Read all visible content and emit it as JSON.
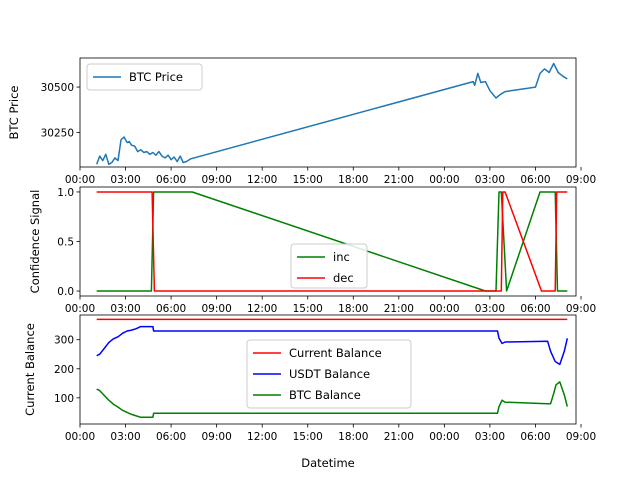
{
  "chart_data": [
    {
      "type": "line",
      "panel": "btc-price",
      "ylabel": "BTC Price",
      "xlabel": "",
      "xlim": [
        0.0,
        32.67
      ],
      "ylim": [
        30060,
        30660
      ],
      "yticks": [
        {
          "v": 30250,
          "label": "30250"
        },
        {
          "v": 30500,
          "label": "30500"
        }
      ],
      "xticks": [
        {
          "v": 0,
          "label": "00:00"
        },
        {
          "v": 3,
          "label": "03:00"
        },
        {
          "v": 6,
          "label": "06:00"
        },
        {
          "v": 9,
          "label": "09:00"
        },
        {
          "v": 12,
          "label": "12:00"
        },
        {
          "v": 15,
          "label": "15:00"
        },
        {
          "v": 18,
          "label": "18:00"
        },
        {
          "v": 21,
          "label": "21:00"
        },
        {
          "v": 24,
          "label": "00:00"
        },
        {
          "v": 27,
          "label": "03:00"
        },
        {
          "v": 30,
          "label": "06:00"
        },
        {
          "v": 33,
          "label": "09:00"
        }
      ],
      "legend": "upper-left",
      "series": [
        {
          "name": "BTC Price",
          "color": "#1f77b4",
          "x": [
            1.1,
            1.3,
            1.5,
            1.7,
            1.9,
            2.1,
            2.3,
            2.5,
            2.7,
            2.9,
            3.1,
            3.25,
            3.4,
            3.6,
            3.8,
            4.0,
            4.2,
            4.4,
            4.6,
            4.8,
            5.0,
            5.2,
            5.4,
            5.6,
            5.8,
            6.0,
            6.2,
            6.4,
            6.6,
            6.8,
            7.0,
            7.3,
            25.9,
            26.0,
            26.2,
            26.4,
            26.7,
            27.0,
            27.4,
            27.7,
            28.0,
            30.0,
            30.3,
            30.6,
            30.9,
            31.2,
            31.5,
            31.8,
            32.1
          ],
          "y": [
            30075,
            30120,
            30095,
            30130,
            30075,
            30085,
            30110,
            30095,
            30210,
            30225,
            30195,
            30200,
            30180,
            30175,
            30145,
            30155,
            30140,
            30145,
            30130,
            30140,
            30125,
            30145,
            30120,
            30110,
            30125,
            30100,
            30115,
            30090,
            30120,
            30085,
            30090,
            30105,
            30530,
            30510,
            30575,
            30525,
            30530,
            30480,
            30440,
            30460,
            30475,
            30500,
            30575,
            30600,
            30580,
            30630,
            30580,
            30560,
            30545
          ]
        }
      ]
    },
    {
      "type": "line",
      "panel": "confidence-signal",
      "ylabel": "Confidence Signal",
      "xlabel": "",
      "xlim": [
        0.0,
        32.67
      ],
      "ylim": [
        -0.05,
        1.05
      ],
      "yticks": [
        {
          "v": 0.0,
          "label": "0.0"
        },
        {
          "v": 0.5,
          "label": "0.5"
        },
        {
          "v": 1.0,
          "label": "1.0"
        }
      ],
      "xticks": [
        {
          "v": 0,
          "label": "00:00"
        },
        {
          "v": 3,
          "label": "03:00"
        },
        {
          "v": 6,
          "label": "06:00"
        },
        {
          "v": 9,
          "label": "09:00"
        },
        {
          "v": 12,
          "label": "12:00"
        },
        {
          "v": 15,
          "label": "15:00"
        },
        {
          "v": 18,
          "label": "18:00"
        },
        {
          "v": 21,
          "label": "21:00"
        },
        {
          "v": 24,
          "label": "00:00"
        },
        {
          "v": 27,
          "label": "03:00"
        },
        {
          "v": 30,
          "label": "06:00"
        },
        {
          "v": 33,
          "label": "09:00"
        }
      ],
      "legend": "lower-center",
      "series": [
        {
          "name": "inc",
          "color": "#008000",
          "x": [
            1.1,
            4.7,
            4.85,
            7.4,
            26.7,
            27.4,
            27.6,
            27.75,
            28.1,
            30.3,
            30.6,
            31.3,
            31.45,
            32.1
          ],
          "y": [
            0,
            0,
            1,
            1,
            0,
            0,
            1,
            1,
            0,
            1,
            1,
            1,
            0,
            0
          ]
        },
        {
          "name": "dec",
          "color": "#ff0000",
          "x": [
            1.1,
            4.75,
            4.9,
            27.75,
            27.85,
            28.0,
            30.4,
            31.3,
            31.4,
            32.1
          ],
          "y": [
            1,
            1,
            0,
            0,
            1,
            1,
            0,
            0,
            1,
            1
          ]
        }
      ]
    },
    {
      "type": "line",
      "panel": "balances",
      "ylabel": "Current Balance",
      "xlabel": "Datetime",
      "xlim": [
        0.0,
        32.67
      ],
      "ylim": [
        10,
        385
      ],
      "yticks": [
        {
          "v": 100,
          "label": "100"
        },
        {
          "v": 200,
          "label": "200"
        },
        {
          "v": 300,
          "label": "300"
        }
      ],
      "xticks": [
        {
          "v": 0,
          "label": "00:00"
        },
        {
          "v": 3,
          "label": "03:00"
        },
        {
          "v": 6,
          "label": "06:00"
        },
        {
          "v": 9,
          "label": "09:00"
        },
        {
          "v": 12,
          "label": "12:00"
        },
        {
          "v": 15,
          "label": "15:00"
        },
        {
          "v": 18,
          "label": "18:00"
        },
        {
          "v": 21,
          "label": "21:00"
        },
        {
          "v": 24,
          "label": "00:00"
        },
        {
          "v": 27,
          "label": "03:00"
        },
        {
          "v": 30,
          "label": "06:00"
        },
        {
          "v": 33,
          "label": "09:00"
        }
      ],
      "legend": "center",
      "series": [
        {
          "name": "Current Balance",
          "color": "#ff0000",
          "x": [
            1.1,
            32.1
          ],
          "y": [
            370,
            370
          ]
        },
        {
          "name": "USDT Balance",
          "color": "#0000ff",
          "x": [
            1.1,
            1.3,
            1.6,
            1.9,
            2.2,
            2.5,
            2.8,
            3.1,
            3.4,
            3.7,
            4.0,
            4.4,
            4.8,
            4.85,
            27.5,
            27.6,
            27.8,
            28.0,
            30.8,
            31.0,
            31.3,
            31.6,
            31.9,
            32.1
          ],
          "y": [
            245,
            250,
            270,
            290,
            303,
            310,
            322,
            330,
            333,
            338,
            345,
            345,
            345,
            330,
            330,
            305,
            287,
            292,
            295,
            260,
            225,
            215,
            260,
            305
          ]
        },
        {
          "name": "BTC Balance",
          "color": "#008000",
          "x": [
            1.1,
            1.3,
            1.6,
            1.9,
            2.2,
            2.5,
            2.8,
            3.1,
            3.4,
            3.7,
            4.0,
            4.4,
            4.8,
            4.85,
            27.5,
            27.6,
            27.8,
            28.0,
            30.8,
            31.0,
            31.2,
            31.35,
            31.6,
            31.9,
            32.1
          ],
          "y": [
            130,
            125,
            108,
            92,
            78,
            68,
            57,
            50,
            43,
            38,
            33,
            33,
            33,
            47,
            47,
            70,
            92,
            85,
            80,
            80,
            115,
            145,
            155,
            110,
            70
          ]
        }
      ]
    }
  ]
}
